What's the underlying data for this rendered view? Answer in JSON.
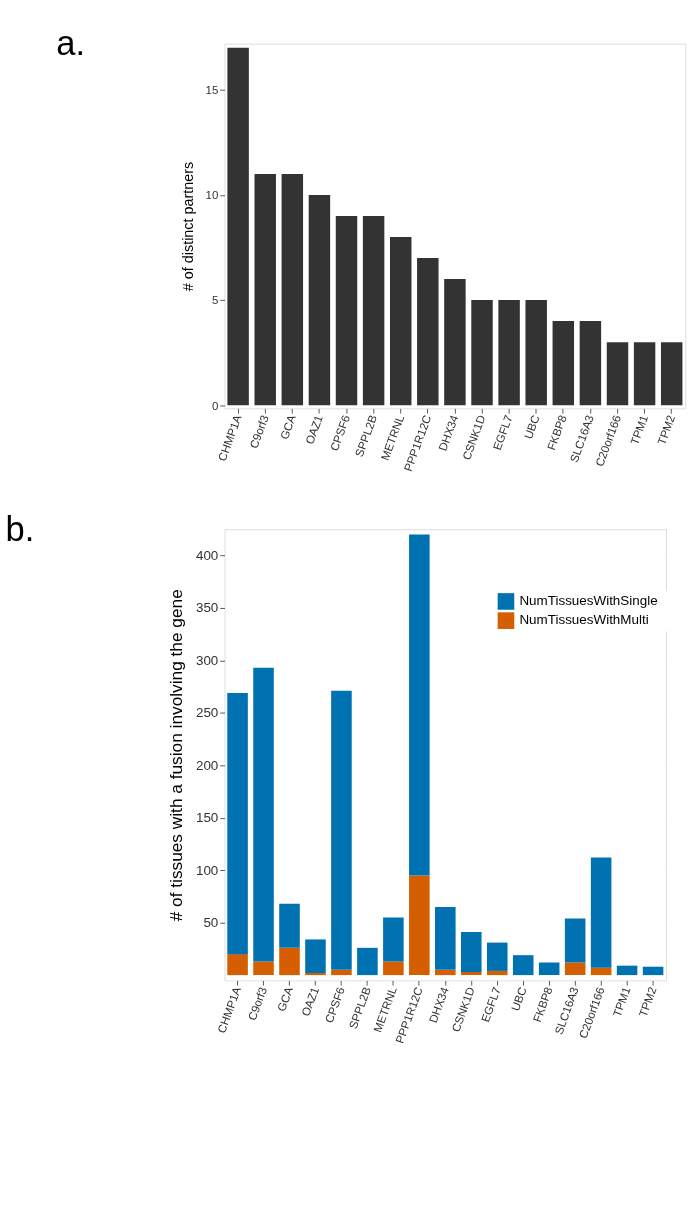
{
  "chart_data": [
    {
      "type": "bar",
      "title": "a.",
      "ylabel": "# of distinct partners",
      "categories": [
        "CHMP1A",
        "C9orf3",
        "GCA",
        "OAZ1",
        "CPSF6",
        "SPPL2B",
        "METRNL",
        "PPP1R12C",
        "DHX34",
        "CSNK1D",
        "EGFL7",
        "UBC",
        "FKBP8",
        "SLC16A3",
        "C20orf166",
        "TPM1",
        "TPM2"
      ],
      "values": [
        17,
        11,
        11,
        10,
        9,
        9,
        8,
        7,
        6,
        5,
        5,
        5,
        4,
        4,
        3,
        3,
        3
      ],
      "color": "#333333",
      "ylim": [
        -0.15,
        17.2
      ],
      "yticks": [
        0,
        5,
        10,
        15
      ],
      "grid": true
    },
    {
      "type": "bar",
      "title": "b.",
      "ylabel": "# of tissues with a fusion involving the gene",
      "stacked": true,
      "categories": [
        "CHMP1A",
        "C9orf3",
        "GCA",
        "OAZ1",
        "CPSF6",
        "SPPL2B",
        "METRNL",
        "PPP1R12C",
        "DHX34",
        "CSNK1D",
        "EGFL7",
        "UBC",
        "FKBP8",
        "SLC16A3",
        "C20orf166",
        "TPM1",
        "TPM2"
      ],
      "series": [
        {
          "name": "NumTissuesWithMulti",
          "color": "#d55e00",
          "values": [
            20,
            13,
            26,
            2,
            5,
            0,
            13,
            95,
            5,
            3,
            4,
            0,
            0,
            12,
            7,
            0,
            0
          ]
        },
        {
          "name": "NumTissuesWithSingle",
          "color": "#0072b2",
          "values": [
            249,
            280,
            42,
            32,
            266,
            26,
            42,
            325,
            60,
            38,
            27,
            19,
            12,
            42,
            105,
            9,
            8
          ]
        }
      ],
      "ylim": [
        -5,
        425
      ],
      "yticks": [
        50,
        100,
        150,
        200,
        250,
        300,
        350,
        400
      ],
      "grid": true,
      "legend": "top right"
    }
  ]
}
